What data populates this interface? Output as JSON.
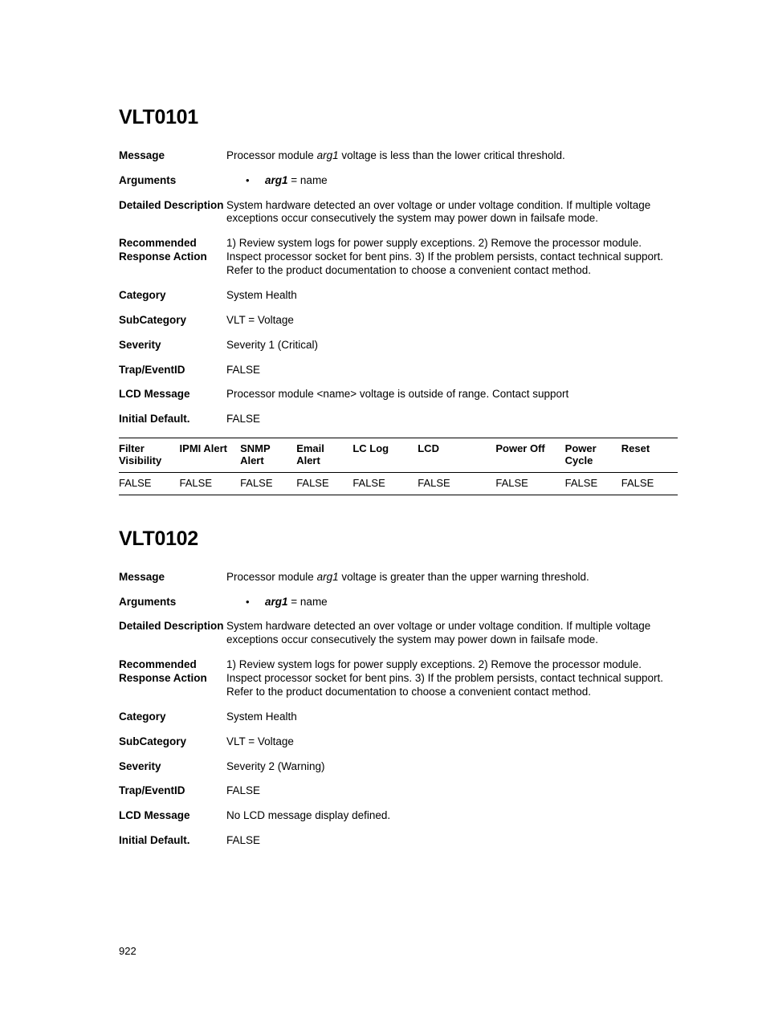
{
  "page_number": "922",
  "sections": [
    {
      "heading": "VLT0101",
      "rows": [
        {
          "label": "Message",
          "type": "message",
          "prefix": "Processor module ",
          "arg": "arg1 ",
          "suffix": "voltage is less than the lower critical threshold."
        },
        {
          "label": "Arguments",
          "type": "args",
          "arg_name": "arg1",
          "eq": " = ",
          "arg_val": "name"
        },
        {
          "label": "Detailed Description",
          "type": "plain",
          "value": "System hardware detected an over voltage or under voltage condition. If multiple voltage exceptions occur consecutively the system may power down in failsafe mode."
        },
        {
          "label": "Recommended Response Action",
          "type": "plain",
          "value": "1) Review system logs for power supply exceptions. 2) Remove the processor module. Inspect processor socket for bent pins. 3) If the problem persists, contact technical support. Refer to the product documentation to choose a convenient contact method."
        },
        {
          "label": "Category",
          "type": "plain",
          "value": "System Health"
        },
        {
          "label": "SubCategory",
          "type": "plain",
          "value": "VLT = Voltage"
        },
        {
          "label": "Severity",
          "type": "plain",
          "value": "Severity 1 (Critical)"
        },
        {
          "label": "Trap/EventID",
          "type": "plain",
          "value": "FALSE"
        },
        {
          "label": "LCD Message",
          "type": "plain",
          "value": "Processor module <name> voltage is outside of range. Contact support"
        },
        {
          "label": "Initial Default.",
          "type": "plain",
          "value": "FALSE"
        }
      ],
      "table": {
        "columns": [
          "Filter Visibility",
          "IPMI Alert",
          "SNMP Alert",
          "Email Alert",
          "LC Log",
          "LCD",
          "Power Off",
          "Power Cycle",
          "Reset"
        ],
        "widths": [
          56,
          56,
          52,
          52,
          60,
          72,
          64,
          52,
          52
        ],
        "rows": [
          [
            "FALSE",
            "FALSE",
            "FALSE",
            "FALSE",
            "FALSE",
            "FALSE",
            "FALSE",
            "FALSE",
            "FALSE"
          ]
        ]
      }
    },
    {
      "heading": "VLT0102",
      "rows": [
        {
          "label": "Message",
          "type": "message",
          "prefix": "Processor module ",
          "arg": "arg1 ",
          "suffix": "voltage is greater than the upper warning threshold."
        },
        {
          "label": "Arguments",
          "type": "args",
          "arg_name": "arg1",
          "eq": " = ",
          "arg_val": "name"
        },
        {
          "label": "Detailed Description",
          "type": "plain",
          "value": "System hardware detected an over voltage or under voltage condition. If multiple voltage exceptions occur consecutively the system may power down in failsafe mode."
        },
        {
          "label": "Recommended Response Action",
          "type": "plain",
          "value": "1) Review system logs for power supply exceptions. 2) Remove the processor module. Inspect processor socket for bent pins. 3) If the problem persists, contact technical support. Refer to the product documentation to choose a convenient contact method."
        },
        {
          "label": "Category",
          "type": "plain",
          "value": "System Health"
        },
        {
          "label": "SubCategory",
          "type": "plain",
          "value": "VLT = Voltage"
        },
        {
          "label": "Severity",
          "type": "plain",
          "value": "Severity 2 (Warning)"
        },
        {
          "label": "Trap/EventID",
          "type": "plain",
          "value": "FALSE"
        },
        {
          "label": "LCD Message",
          "type": "plain",
          "value": "No LCD message display defined."
        },
        {
          "label": "Initial Default.",
          "type": "plain",
          "value": "FALSE"
        }
      ]
    }
  ]
}
